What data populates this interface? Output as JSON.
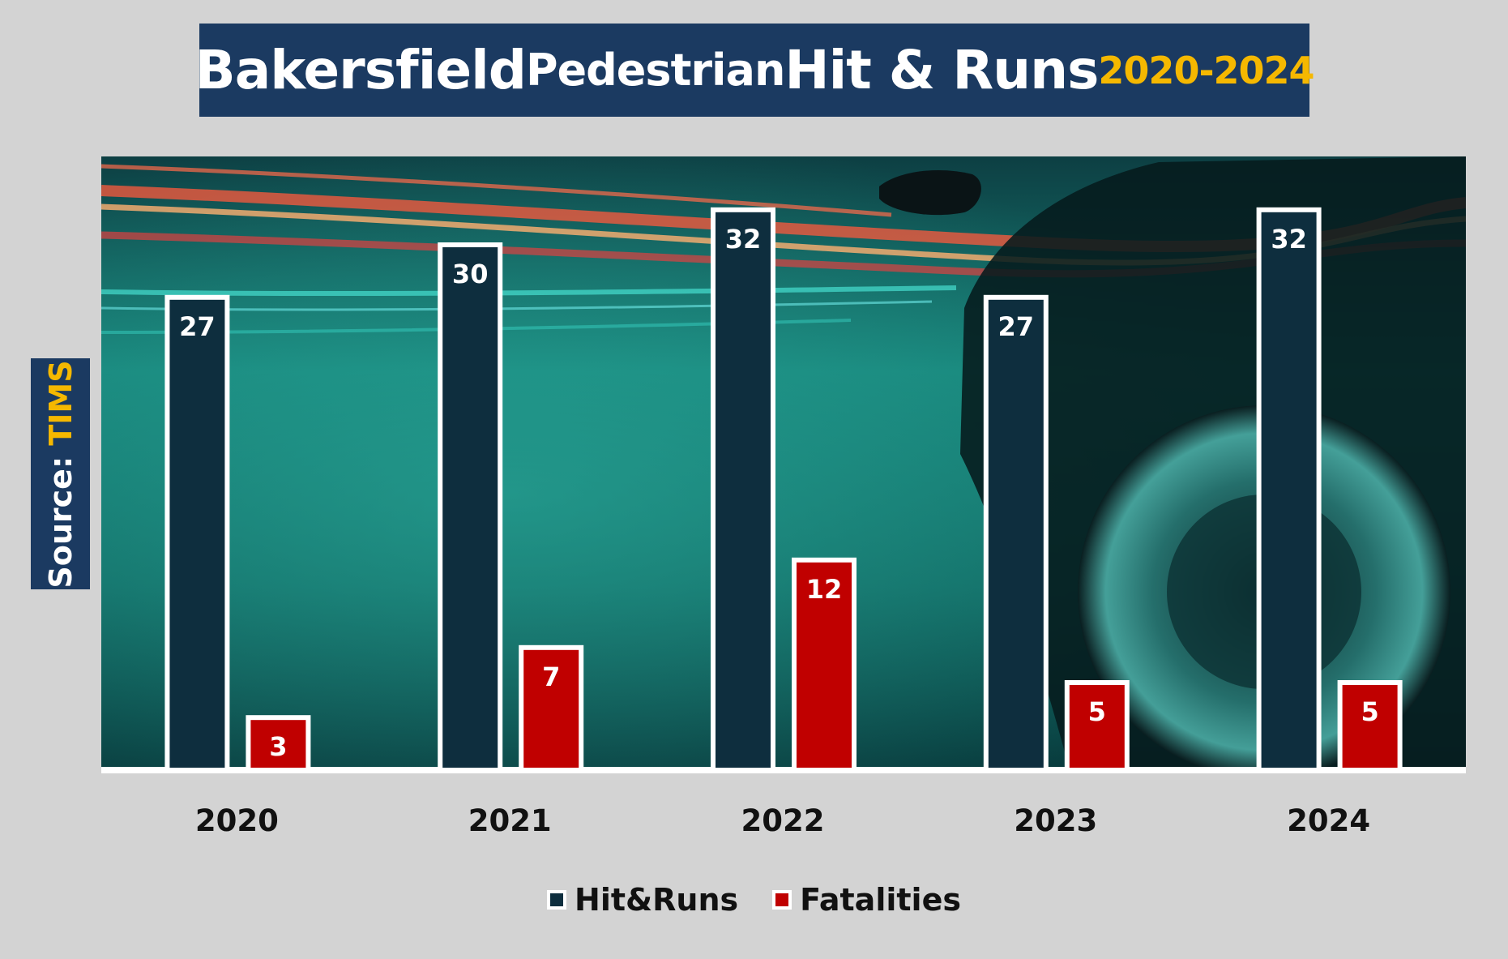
{
  "title": {
    "part1": "Bakersfield",
    "part2": "Pedestrian",
    "part3": "Hit & Runs",
    "years": "2020-2024"
  },
  "source": {
    "label": "Source:",
    "value": "TIMS"
  },
  "colors": {
    "hit_runs": "#0e2e3e",
    "fatalities": "#c00000",
    "title_bg": "#1b3a61",
    "accent_yellow": "#f5b800",
    "page_bg": "#d3d3d3"
  },
  "chart_data": {
    "type": "bar",
    "categories": [
      "2020",
      "2021",
      "2022",
      "2023",
      "2024"
    ],
    "series": [
      {
        "name": "Hit&Runs",
        "values": [
          27,
          30,
          32,
          27,
          32
        ]
      },
      {
        "name": "Fatalities",
        "values": [
          3,
          7,
          12,
          5,
          5
        ]
      }
    ],
    "ylim": [
      0,
      35
    ],
    "grid": false,
    "data_labels": true,
    "legend_position": "bottom",
    "background": "night street with light trails and car"
  }
}
